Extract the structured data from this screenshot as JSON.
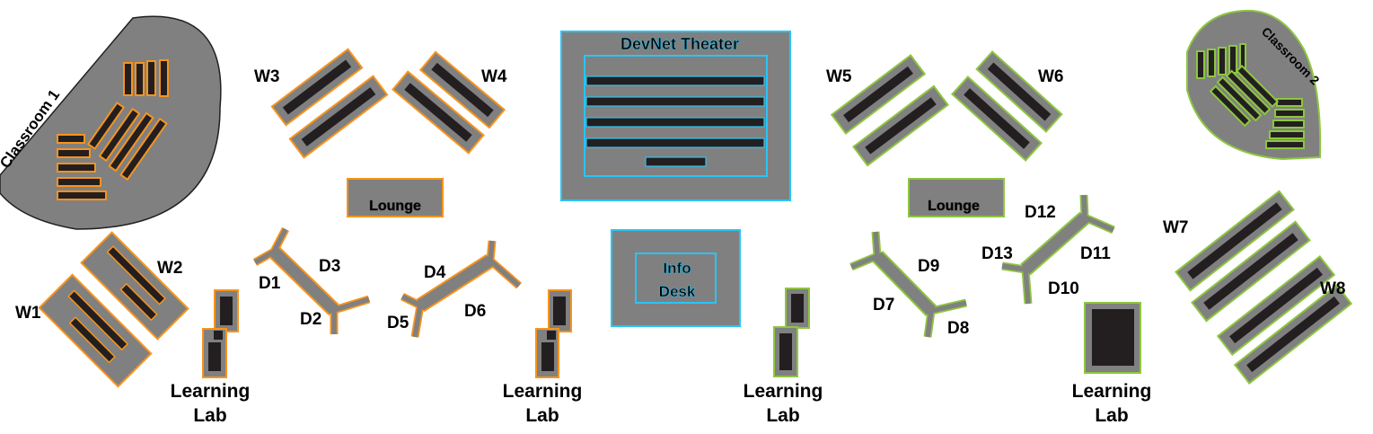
{
  "colors": {
    "gray": "#808080",
    "dark": "#231f20",
    "orange": "#f7941d",
    "green": "#8dc63f",
    "blue": "#29c5f6",
    "theater_label": "#1b75bc",
    "lounge_left_text": "#f7941d",
    "lounge_right_text": "#8dc63f"
  },
  "classrooms": {
    "left": "Classroom 1",
    "right": "Classroom 2"
  },
  "theater": {
    "label": "DevNet Theater"
  },
  "info_desk": {
    "line1": "Info",
    "line2": "Desk"
  },
  "lounges": {
    "left": "Lounge",
    "right": "Lounge"
  },
  "workbenches": [
    "W1",
    "W2",
    "W3",
    "W4",
    "W5",
    "W6",
    "W7",
    "W8"
  ],
  "desks": [
    "D1",
    "D2",
    "D3",
    "D4",
    "D5",
    "D6",
    "D7",
    "D8",
    "D9",
    "D10",
    "D11",
    "D12",
    "D13"
  ],
  "learning_labs": [
    {
      "line1": "Learning",
      "line2": "Lab"
    },
    {
      "line1": "Learning",
      "line2": "Lab"
    },
    {
      "line1": "Learning",
      "line2": "Lab"
    },
    {
      "line1": "Learning",
      "line2": "Lab"
    }
  ]
}
